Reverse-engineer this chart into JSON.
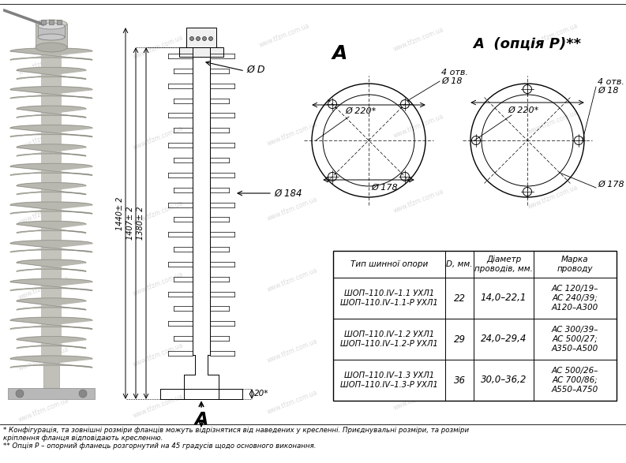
{
  "bg_color": "#ffffff",
  "watermark": "www.tfzm.com.ua",
  "black": "#000000",
  "gray_ins": "#b8b8b0",
  "gray_ins_dark": "#888880",
  "gray_metal": "#a0a0a0",
  "gray_light": "#d0d0c8",
  "gray_flange": "#c0c0b8",
  "table_headers": [
    "Тип шинної опори",
    "D, мм.",
    "Діаметр\nпроводів, мм.",
    "Марка\nпроводу"
  ],
  "table_rows": [
    [
      "ШОП–110.IV–1.1 УХЛ1\nШОП–110.IV–1.1-Р УХЛ1",
      "22",
      "14,0–22,1",
      "АС 120/19–\nАС 240/39;\nА120–А300"
    ],
    [
      "ШОП–110.IV–1.2 УХЛ1\nШОП–110.IV–1.2-Р УХЛ1",
      "29",
      "24,0–29,4",
      "АС 300/39–\nАС 500/27;\nА350–А500"
    ],
    [
      "ШОП–110.IV–1.3 УХЛ1\nШОП–110.IV–1.3-Р УХЛ1",
      "36",
      "30,0–36,2",
      "АС 500/26–\nАС 700/86;\nА550–А750"
    ]
  ],
  "footnote1": "* Конфігурація, та зовнішні розміри фланців можуть відрізнятися від наведених у кресленні. Приєднувальні розміри, та розміри",
  "footnote2": "кріплення фланця відповідають кресленню.",
  "footnote3": "** Опція Р – опорний фланець розгорнутий на 45 градусів щодо основного виконання."
}
